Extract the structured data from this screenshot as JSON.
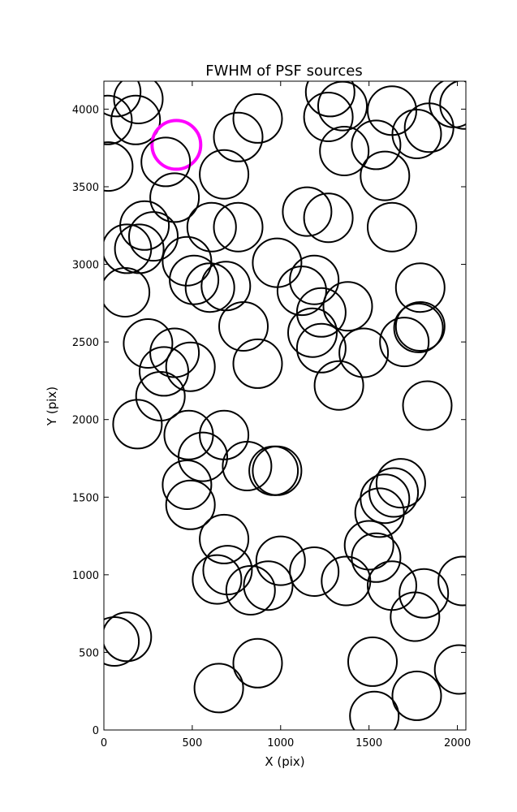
{
  "chart_data": {
    "type": "scatter",
    "title": "FWHM of PSF sources",
    "xlabel": "X (pix)",
    "ylabel": "Y (pix)",
    "xlim": [
      0,
      2048
    ],
    "ylim": [
      0,
      4180
    ],
    "xticks": [
      0,
      500,
      1000,
      1500,
      2000
    ],
    "yticks": [
      0,
      500,
      1000,
      1500,
      2000,
      2500,
      3000,
      3500,
      4000
    ],
    "grid": false,
    "legend": "none",
    "marker": "open circle",
    "colors": {
      "default": "#000000",
      "highlight": "#ff00ff"
    },
    "sources": [
      {
        "x": 20,
        "y": 3930
      },
      {
        "x": 70,
        "y": 4110
      },
      {
        "x": 180,
        "y": 3930
      },
      {
        "x": 195,
        "y": 4065
      },
      {
        "x": 410,
        "y": 3770,
        "highlight": true
      },
      {
        "x": 350,
        "y": 3660
      },
      {
        "x": 25,
        "y": 3630
      },
      {
        "x": 400,
        "y": 3430
      },
      {
        "x": 680,
        "y": 3580
      },
      {
        "x": 760,
        "y": 3820
      },
      {
        "x": 870,
        "y": 3940
      },
      {
        "x": 230,
        "y": 3250
      },
      {
        "x": 280,
        "y": 3180
      },
      {
        "x": 200,
        "y": 3100
      },
      {
        "x": 130,
        "y": 3100
      },
      {
        "x": 470,
        "y": 3020
      },
      {
        "x": 610,
        "y": 3240
      },
      {
        "x": 760,
        "y": 3240
      },
      {
        "x": 510,
        "y": 2900
      },
      {
        "x": 600,
        "y": 2850
      },
      {
        "x": 690,
        "y": 2860
      },
      {
        "x": 120,
        "y": 2820
      },
      {
        "x": 980,
        "y": 3010
      },
      {
        "x": 1120,
        "y": 2830
      },
      {
        "x": 1190,
        "y": 2900
      },
      {
        "x": 1150,
        "y": 3340
      },
      {
        "x": 1270,
        "y": 3300
      },
      {
        "x": 1630,
        "y": 3240
      },
      {
        "x": 1790,
        "y": 2850
      },
      {
        "x": 1790,
        "y": 2600
      },
      {
        "x": 1780,
        "y": 2590
      },
      {
        "x": 1700,
        "y": 2500
      },
      {
        "x": 1380,
        "y": 2730
      },
      {
        "x": 1230,
        "y": 2690
      },
      {
        "x": 1180,
        "y": 2560
      },
      {
        "x": 1230,
        "y": 2460
      },
      {
        "x": 1470,
        "y": 2430
      },
      {
        "x": 1330,
        "y": 2220
      },
      {
        "x": 1830,
        "y": 2090
      },
      {
        "x": 790,
        "y": 2600
      },
      {
        "x": 870,
        "y": 2360
      },
      {
        "x": 250,
        "y": 2490
      },
      {
        "x": 400,
        "y": 2430
      },
      {
        "x": 490,
        "y": 2340
      },
      {
        "x": 340,
        "y": 2310
      },
      {
        "x": 320,
        "y": 2150
      },
      {
        "x": 190,
        "y": 1970
      },
      {
        "x": 480,
        "y": 1900
      },
      {
        "x": 680,
        "y": 1900
      },
      {
        "x": 560,
        "y": 1760
      },
      {
        "x": 810,
        "y": 1700
      },
      {
        "x": 960,
        "y": 1670
      },
      {
        "x": 980,
        "y": 1670
      },
      {
        "x": 470,
        "y": 1580
      },
      {
        "x": 490,
        "y": 1450
      },
      {
        "x": 680,
        "y": 1230
      },
      {
        "x": 700,
        "y": 1030
      },
      {
        "x": 640,
        "y": 970
      },
      {
        "x": 830,
        "y": 900
      },
      {
        "x": 930,
        "y": 930
      },
      {
        "x": 1000,
        "y": 1090
      },
      {
        "x": 1190,
        "y": 1020
      },
      {
        "x": 1370,
        "y": 960
      },
      {
        "x": 1500,
        "y": 1190
      },
      {
        "x": 1540,
        "y": 1110
      },
      {
        "x": 1630,
        "y": 930
      },
      {
        "x": 1760,
        "y": 730
      },
      {
        "x": 1810,
        "y": 880
      },
      {
        "x": 2030,
        "y": 960
      },
      {
        "x": 1680,
        "y": 1590
      },
      {
        "x": 1640,
        "y": 1530
      },
      {
        "x": 1590,
        "y": 1490
      },
      {
        "x": 1560,
        "y": 1400
      },
      {
        "x": 60,
        "y": 570
      },
      {
        "x": 130,
        "y": 600
      },
      {
        "x": 650,
        "y": 270
      },
      {
        "x": 870,
        "y": 430
      },
      {
        "x": 1520,
        "y": 440
      },
      {
        "x": 1530,
        "y": 90
      },
      {
        "x": 1770,
        "y": 220
      },
      {
        "x": 2010,
        "y": 390
      },
      {
        "x": 1280,
        "y": 4110
      },
      {
        "x": 1350,
        "y": 4020
      },
      {
        "x": 1270,
        "y": 3950
      },
      {
        "x": 1360,
        "y": 3730
      },
      {
        "x": 1540,
        "y": 3770
      },
      {
        "x": 1590,
        "y": 3570
      },
      {
        "x": 1630,
        "y": 3990
      },
      {
        "x": 1770,
        "y": 3840
      },
      {
        "x": 1840,
        "y": 3880
      },
      {
        "x": 1980,
        "y": 4040
      },
      {
        "x": 2040,
        "y": 4030
      }
    ]
  }
}
